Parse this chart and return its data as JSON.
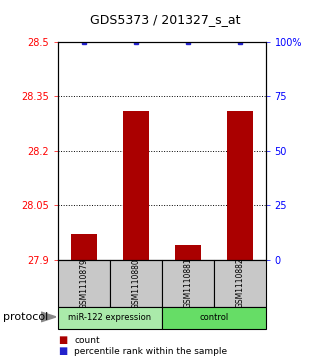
{
  "title": "GDS5373 / 201327_s_at",
  "samples": [
    "GSM1110879",
    "GSM1110880",
    "GSM1110881",
    "GSM1110882"
  ],
  "bar_values": [
    27.97,
    28.31,
    27.94,
    28.31
  ],
  "percentile_values": [
    100,
    100,
    100,
    100
  ],
  "y_min": 27.9,
  "y_max": 28.5,
  "y_ticks": [
    27.9,
    28.05,
    28.2,
    28.35,
    28.5
  ],
  "y_tick_labels": [
    "27.9",
    "28.05",
    "28.2",
    "28.35",
    "28.5"
  ],
  "dotted_lines": [
    28.05,
    28.2,
    28.35
  ],
  "right_y_ticks": [
    0,
    25,
    50,
    75,
    100
  ],
  "right_y_tick_labels": [
    "0",
    "25",
    "50",
    "75",
    "100%"
  ],
  "bar_color": "#AA0000",
  "dot_color": "#2222CC",
  "sample_box_color": "#C8C8C8",
  "group_info": [
    {
      "start": 0,
      "end": 1,
      "label": "miR-122 expression",
      "color": "#AAEAAA"
    },
    {
      "start": 2,
      "end": 3,
      "label": "control",
      "color": "#66DD66"
    }
  ],
  "protocol_label": "protocol",
  "legend_bar_label": "count",
  "legend_dot_label": "percentile rank within the sample"
}
